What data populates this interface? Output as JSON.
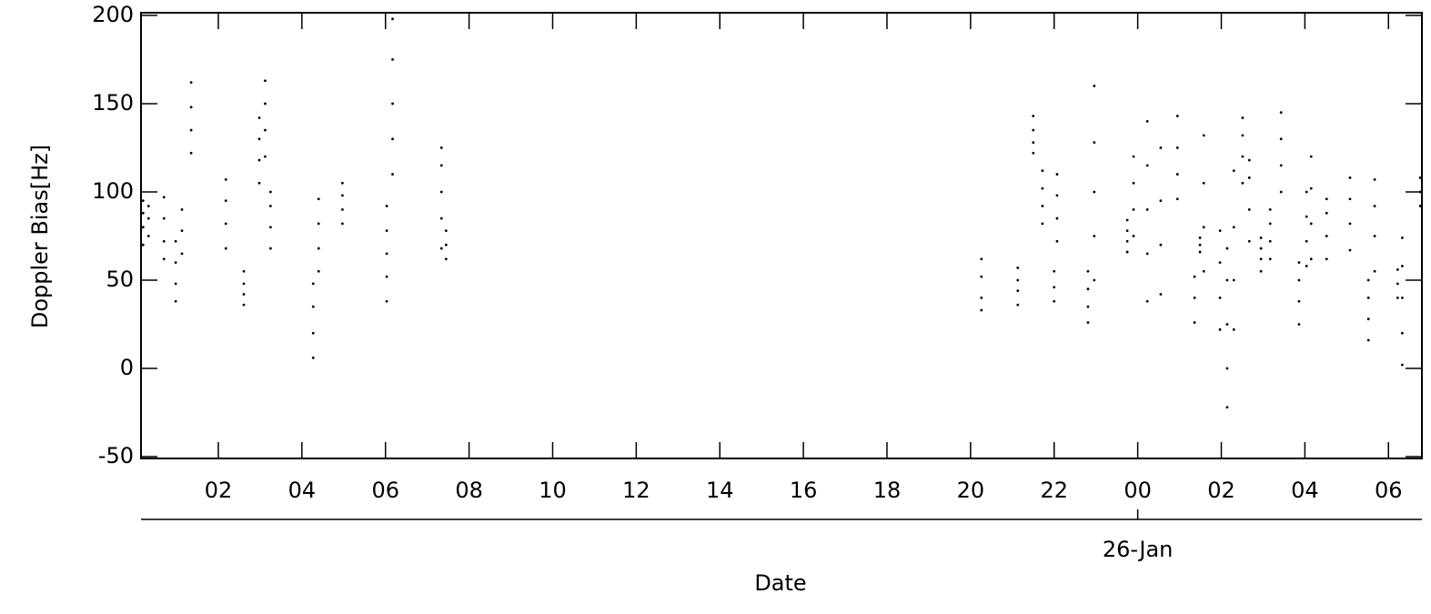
{
  "chart_data": {
    "type": "scatter",
    "x_label": "Date",
    "y_label": "Doppler Bias[Hz]",
    "color": "#000000",
    "xlim": [
      0.15,
      30.8
    ],
    "ylim": [
      -51,
      201.5
    ],
    "xticks": [
      {
        "value": 2,
        "label": "02"
      },
      {
        "value": 4,
        "label": "04"
      },
      {
        "value": 6,
        "label": "06"
      },
      {
        "value": 8,
        "label": "08"
      },
      10,
      12,
      14,
      16,
      18,
      20,
      22,
      {
        "value": 24,
        "label": "00"
      },
      {
        "value": 26,
        "label": "02"
      },
      {
        "value": 28,
        "label": "04"
      },
      {
        "value": 30,
        "label": "06"
      }
    ],
    "x2ticks": [
      {
        "value": 24,
        "label": "26-Jan"
      }
    ],
    "yticks": [
      -50,
      0,
      50,
      100,
      150,
      200
    ],
    "x": [
      0.2,
      0.2,
      0.2,
      0.2,
      0.33,
      0.33,
      0.33,
      0.7,
      0.7,
      0.7,
      0.7,
      0.98,
      0.98,
      0.98,
      0.98,
      1.13,
      1.13,
      1.13,
      1.35,
      1.35,
      1.35,
      1.35,
      2.18,
      2.18,
      2.18,
      2.18,
      2.61,
      2.61,
      2.61,
      2.61,
      2.98,
      2.98,
      2.98,
      2.98,
      3.12,
      3.12,
      3.12,
      3.12,
      3.25,
      3.25,
      3.25,
      3.25,
      4.27,
      4.27,
      4.27,
      4.27,
      4.4,
      4.4,
      4.4,
      4.4,
      4.97,
      4.97,
      4.97,
      4.97,
      6.03,
      6.03,
      6.03,
      6.03,
      6.03,
      6.17,
      6.17,
      6.17,
      6.17,
      6.17,
      7.34,
      7.34,
      7.34,
      7.34,
      7.34,
      7.45,
      7.45,
      7.45,
      20.26,
      20.26,
      20.26,
      20.26,
      21.13,
      21.13,
      21.13,
      21.13,
      21.5,
      21.5,
      21.5,
      21.5,
      21.72,
      21.72,
      21.72,
      21.72,
      22.0,
      22.0,
      22.0,
      22.07,
      22.07,
      22.07,
      22.07,
      22.81,
      22.81,
      22.81,
      22.81,
      22.96,
      22.96,
      22.96,
      22.96,
      22.96,
      23.75,
      23.75,
      23.75,
      23.75,
      23.9,
      23.9,
      23.9,
      23.9,
      24.23,
      24.23,
      24.23,
      24.23,
      24.23,
      24.55,
      24.55,
      24.55,
      24.55,
      24.95,
      24.95,
      24.95,
      24.95,
      25.36,
      25.36,
      25.36,
      25.49,
      25.49,
      25.49,
      25.58,
      25.58,
      25.58,
      25.58,
      25.97,
      25.97,
      25.97,
      25.97,
      26.14,
      26.14,
      26.14,
      26.14,
      26.14,
      26.3,
      26.3,
      26.3,
      26.3,
      26.51,
      26.51,
      26.51,
      26.51,
      26.67,
      26.67,
      26.67,
      26.67,
      26.95,
      26.95,
      26.95,
      26.95,
      27.17,
      27.17,
      27.17,
      27.17,
      27.43,
      27.43,
      27.43,
      27.43,
      27.86,
      27.86,
      27.86,
      27.86,
      28.04,
      28.04,
      28.04,
      28.04,
      28.15,
      28.15,
      28.15,
      28.15,
      28.52,
      28.52,
      28.52,
      28.52,
      29.08,
      29.08,
      29.08,
      29.08,
      29.52,
      29.52,
      29.52,
      29.52,
      29.67,
      29.67,
      29.67,
      29.67,
      30.22,
      30.22,
      30.22,
      30.33,
      30.33,
      30.33,
      30.33,
      30.33,
      30.76,
      30.76,
      30.76
    ],
    "values": [
      70,
      80,
      88,
      95,
      75,
      85,
      92,
      62,
      72,
      85,
      97,
      38,
      48,
      60,
      72,
      65,
      78,
      90,
      122,
      135,
      148,
      162,
      68,
      82,
      95,
      107,
      36,
      42,
      48,
      55,
      105,
      118,
      130,
      142,
      120,
      135,
      150,
      163,
      68,
      80,
      92,
      100,
      6,
      20,
      35,
      48,
      55,
      68,
      82,
      96,
      82,
      90,
      98,
      105,
      38,
      52,
      65,
      78,
      92,
      110,
      130,
      150,
      175,
      198,
      68,
      85,
      100,
      115,
      125,
      62,
      70,
      78,
      33,
      40,
      52,
      62,
      36,
      44,
      50,
      57,
      122,
      128,
      135,
      143,
      82,
      92,
      102,
      112,
      38,
      46,
      55,
      72,
      85,
      98,
      110,
      26,
      35,
      45,
      55,
      50,
      75,
      100,
      128,
      160,
      66,
      72,
      78,
      84,
      75,
      90,
      105,
      120,
      38,
      65,
      90,
      115,
      140,
      42,
      70,
      95,
      125,
      96,
      110,
      125,
      143,
      26,
      40,
      52,
      66,
      70,
      74,
      55,
      80,
      105,
      132,
      22,
      40,
      60,
      78,
      -22,
      0,
      25,
      50,
      68,
      22,
      50,
      80,
      112,
      105,
      120,
      132,
      142,
      72,
      90,
      108,
      118,
      55,
      62,
      68,
      74,
      62,
      72,
      82,
      90,
      100,
      115,
      130,
      145,
      25,
      38,
      50,
      60,
      58,
      72,
      86,
      100,
      62,
      82,
      102,
      120,
      62,
      75,
      88,
      96,
      67,
      82,
      96,
      108,
      16,
      28,
      40,
      50,
      55,
      75,
      92,
      107,
      40,
      48,
      56,
      2,
      20,
      40,
      58,
      74,
      92,
      100,
      108
    ]
  }
}
